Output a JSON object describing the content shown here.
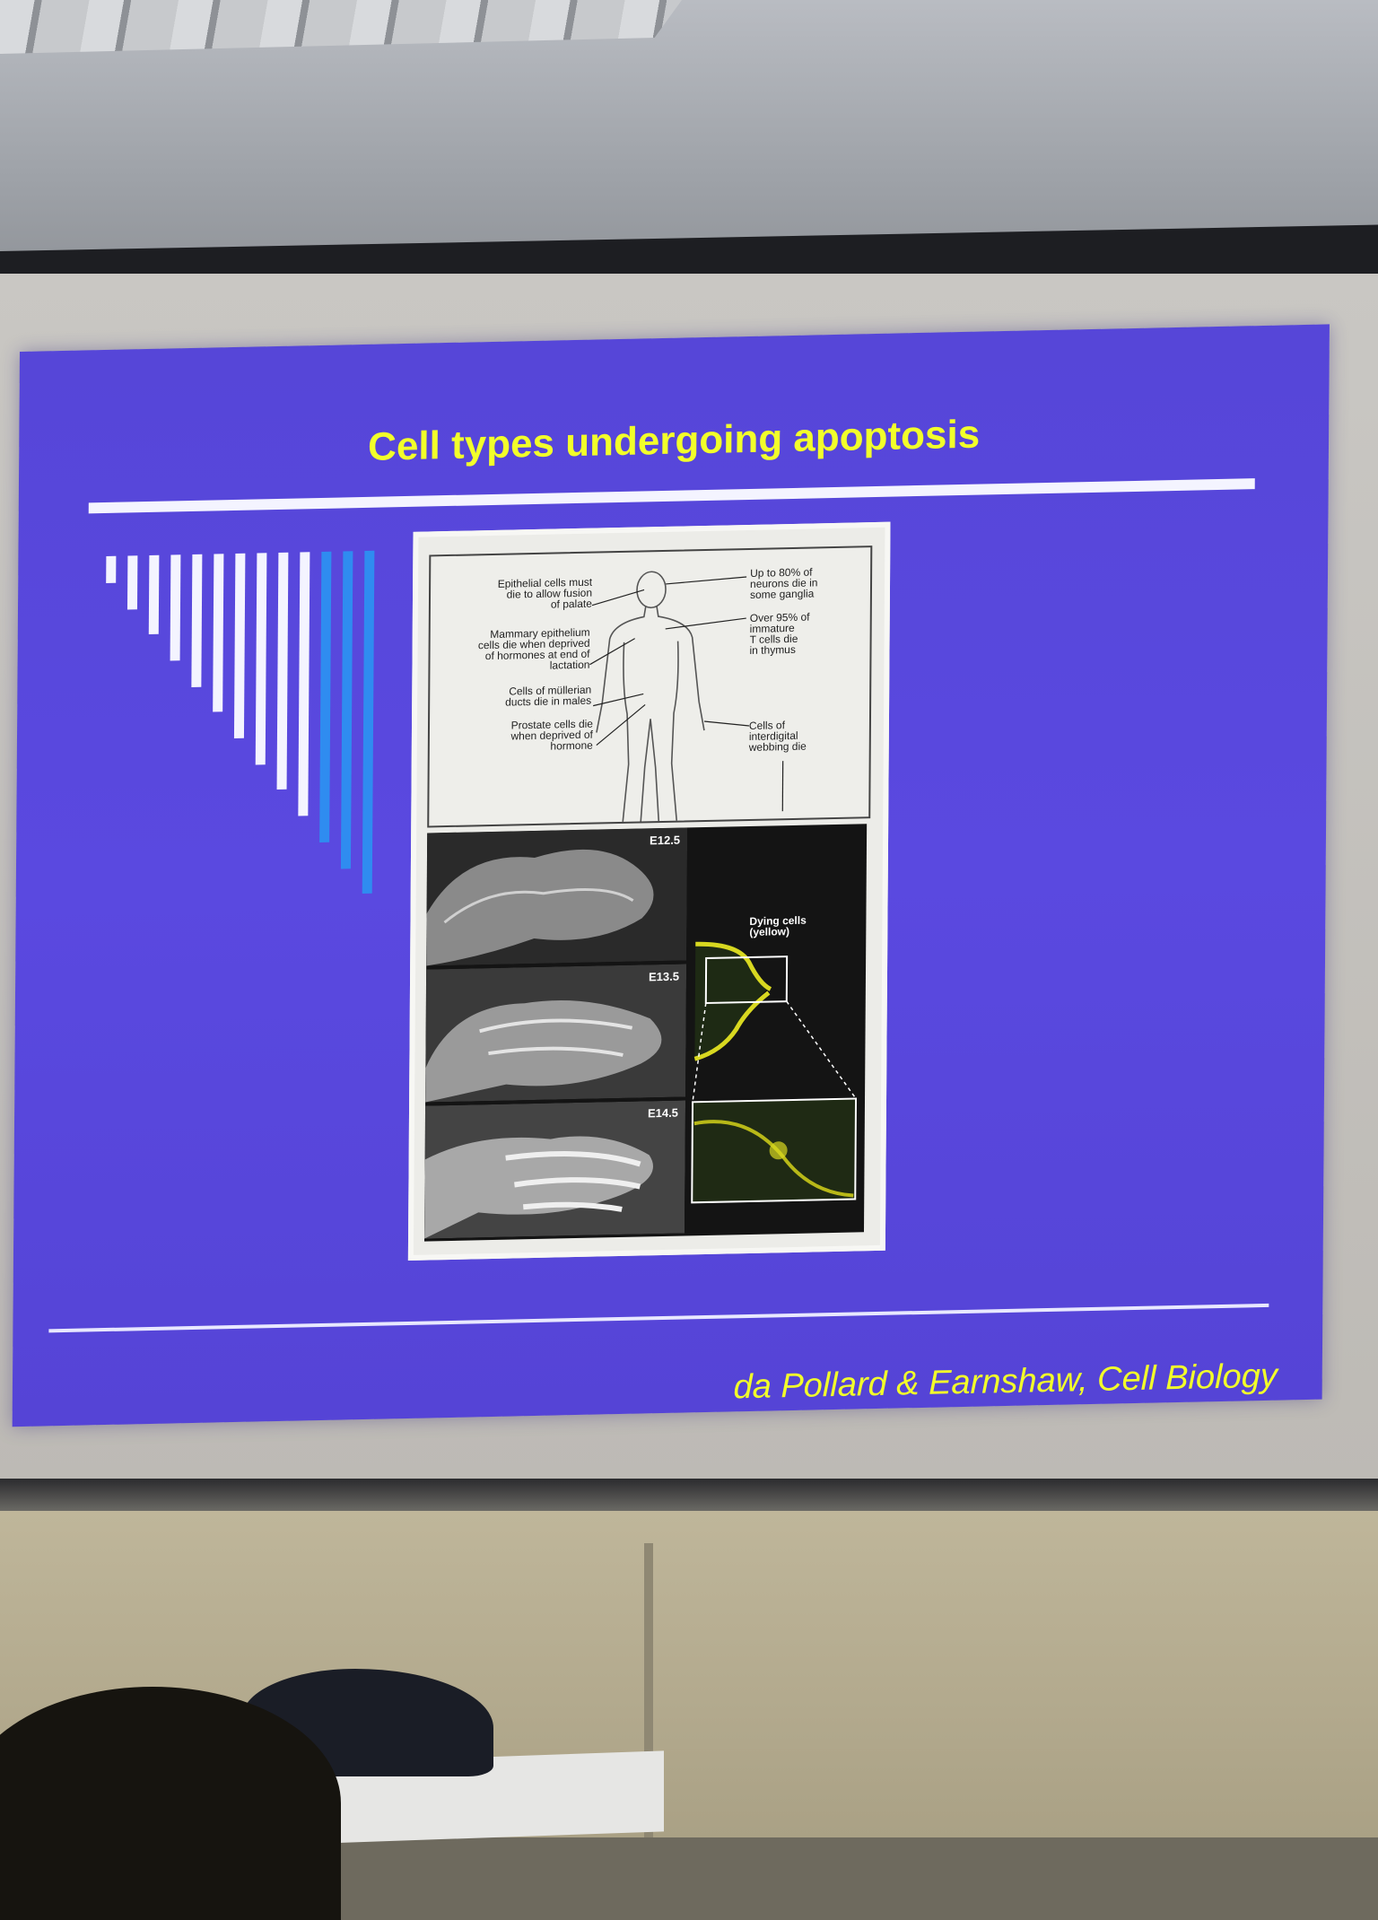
{
  "slide": {
    "title": "Cell types undergoing apoptosis",
    "citation": "da Pollard & Earnshaw, Cell Biology",
    "figure": {
      "annotations_left": [
        "Epithelial cells must\ndie to allow fusion\nof palate",
        "Mammary epithelium\ncells die when deprived\nof hormones at end of\nlactation",
        "Cells of müllerian\nducts die in males",
        "Prostate cells die\nwhen deprived of\nhormone"
      ],
      "annotations_right": [
        "Up to 80% of\nneurons die in\nsome ganglia",
        "Over 95% of\nimmature\nT cells die\nin thymus",
        "Cells of\ninterdigital\nwebbing die"
      ],
      "stages": [
        "E12.5",
        "E13.5",
        "E14.5"
      ],
      "dying_cells_label": "Dying cells\n(yellow)"
    }
  },
  "colors": {
    "slide_background": "#5646d8",
    "title_text": "#f2ff2a",
    "bar_white": "#f4f4ff",
    "bar_blue": "#2f8cf0",
    "dying_cells": "#d8d820"
  }
}
